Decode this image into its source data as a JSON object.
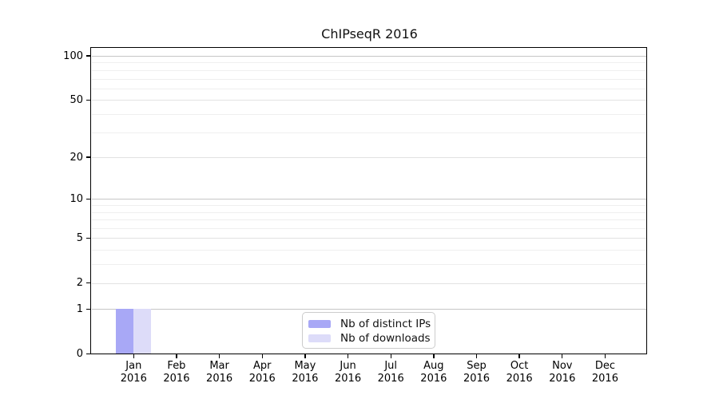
{
  "chart_data": {
    "type": "bar",
    "title": "ChIPseqR 2016",
    "x_axis": {
      "months": [
        "Jan",
        "Feb",
        "Mar",
        "Apr",
        "May",
        "Jun",
        "Jul",
        "Aug",
        "Sep",
        "Oct",
        "Nov",
        "Dec"
      ],
      "year": "2016"
    },
    "y_axis": {
      "ticks": [
        0,
        1,
        2,
        5,
        10,
        20,
        50,
        100
      ],
      "minor_gridlines": [
        3,
        4,
        6,
        7,
        8,
        9,
        30,
        40,
        60,
        70,
        80,
        90
      ],
      "scale": "log10(value+1)",
      "ylim": [
        0,
        113
      ],
      "grid": true
    },
    "series": [
      {
        "name": "Nb of distinct IPs",
        "color": "#a8a8f6",
        "values": [
          1,
          0,
          0,
          0,
          0,
          0,
          0,
          0,
          0,
          0,
          0,
          0
        ]
      },
      {
        "name": "Nb of downloads",
        "color": "#dddcf9",
        "values": [
          1,
          0,
          0,
          0,
          0,
          0,
          0,
          0,
          0,
          0,
          0,
          0
        ]
      }
    ],
    "legend": {
      "position": "bottom-center"
    }
  }
}
